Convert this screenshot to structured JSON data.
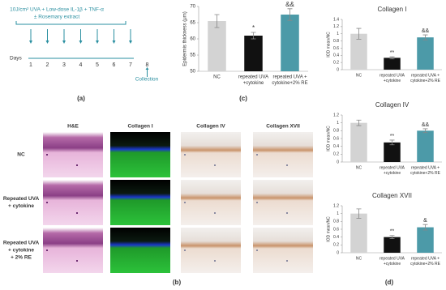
{
  "panel_a": {
    "treatment": "10J/cm² UVA + Low-dose IL-1β + TNF-α",
    "extract": "± Rosemary extract",
    "days_label": "Days",
    "days": [
      1,
      2,
      3,
      4,
      5,
      6,
      7,
      8
    ],
    "collection": "Collection",
    "label": "(a)"
  },
  "panel_b": {
    "columns": [
      "H&E",
      "Collagen I",
      "Collagen IV",
      "Collagen XVII"
    ],
    "rows": [
      [
        "NC"
      ],
      [
        "Repeated UVA",
        "+ cytokine"
      ],
      [
        "Repeated UVA",
        "+ cytokine",
        "+ 2% RE"
      ]
    ],
    "label": "(b)"
  },
  "chart_labels": [
    "(c)",
    "(d)"
  ],
  "chart_data": [
    {
      "type": "bar",
      "ylabel": "Epidermis thickness (μm)",
      "categories": [
        [
          "NC"
        ],
        [
          "repeated UVA",
          "+cytokine"
        ],
        [
          "repeated UVA +",
          "cytokine+2% RE"
        ]
      ],
      "values": [
        65.5,
        61,
        67.5
      ],
      "errors": [
        2,
        1,
        1.8
      ],
      "annotations": [
        null,
        "*",
        "&&"
      ],
      "colors": [
        "#d3d3d3",
        "#111111",
        "#4c9aa8"
      ],
      "ylim": [
        50,
        70
      ],
      "yticks": [
        50,
        55,
        60,
        65,
        70
      ]
    },
    {
      "type": "bar",
      "title": "Collagen I",
      "ylabel": "IOD mean/NC",
      "categories": [
        [
          "NC"
        ],
        [
          "repeated UVA",
          "+cytokine"
        ],
        [
          "repeated UVA +",
          "cytokine+2% RE"
        ]
      ],
      "values": [
        1.0,
        0.33,
        0.9
      ],
      "errors": [
        0.15,
        0.03,
        0.07
      ],
      "annotations": [
        null,
        "**",
        "&&"
      ],
      "colors": [
        "#d3d3d3",
        "#111111",
        "#4c9aa8"
      ],
      "ylim": [
        0,
        1.4
      ],
      "yticks": [
        0,
        0.2,
        0.4,
        0.6,
        0.8,
        1,
        1.2,
        1.4
      ]
    },
    {
      "type": "bar",
      "title": "Collagen IV",
      "ylabel": "IOD mean/NC",
      "categories": [
        [
          "NC"
        ],
        [
          "repeated UVA",
          "+cytokine"
        ],
        [
          "repeated UVA +",
          "cytokine+2% RE"
        ]
      ],
      "values": [
        1.0,
        0.5,
        0.8
      ],
      "errors": [
        0.07,
        0.06,
        0.05
      ],
      "annotations": [
        null,
        "**",
        "&&"
      ],
      "colors": [
        "#d3d3d3",
        "#111111",
        "#4c9aa8"
      ],
      "ylim": [
        0,
        1.2
      ],
      "yticks": [
        0,
        0.2,
        0.4,
        0.6,
        0.8,
        1,
        1.2
      ]
    },
    {
      "type": "bar",
      "title": "Collagen XVII",
      "ylabel": "IOD mean/NC",
      "categories": [
        [
          "NC"
        ],
        [
          "repeated UVA",
          "+cytokine"
        ],
        [
          "repeated UVA +",
          "cytokine+2% RE"
        ]
      ],
      "values": [
        1.0,
        0.4,
        0.65
      ],
      "errors": [
        0.12,
        0.04,
        0.07
      ],
      "annotations": [
        null,
        "**",
        "&"
      ],
      "colors": [
        "#d3d3d3",
        "#111111",
        "#4c9aa8"
      ],
      "ylim": [
        0,
        1.2
      ],
      "yticks": [
        0,
        0.2,
        0.4,
        0.6,
        0.8,
        1,
        1.2
      ]
    }
  ]
}
